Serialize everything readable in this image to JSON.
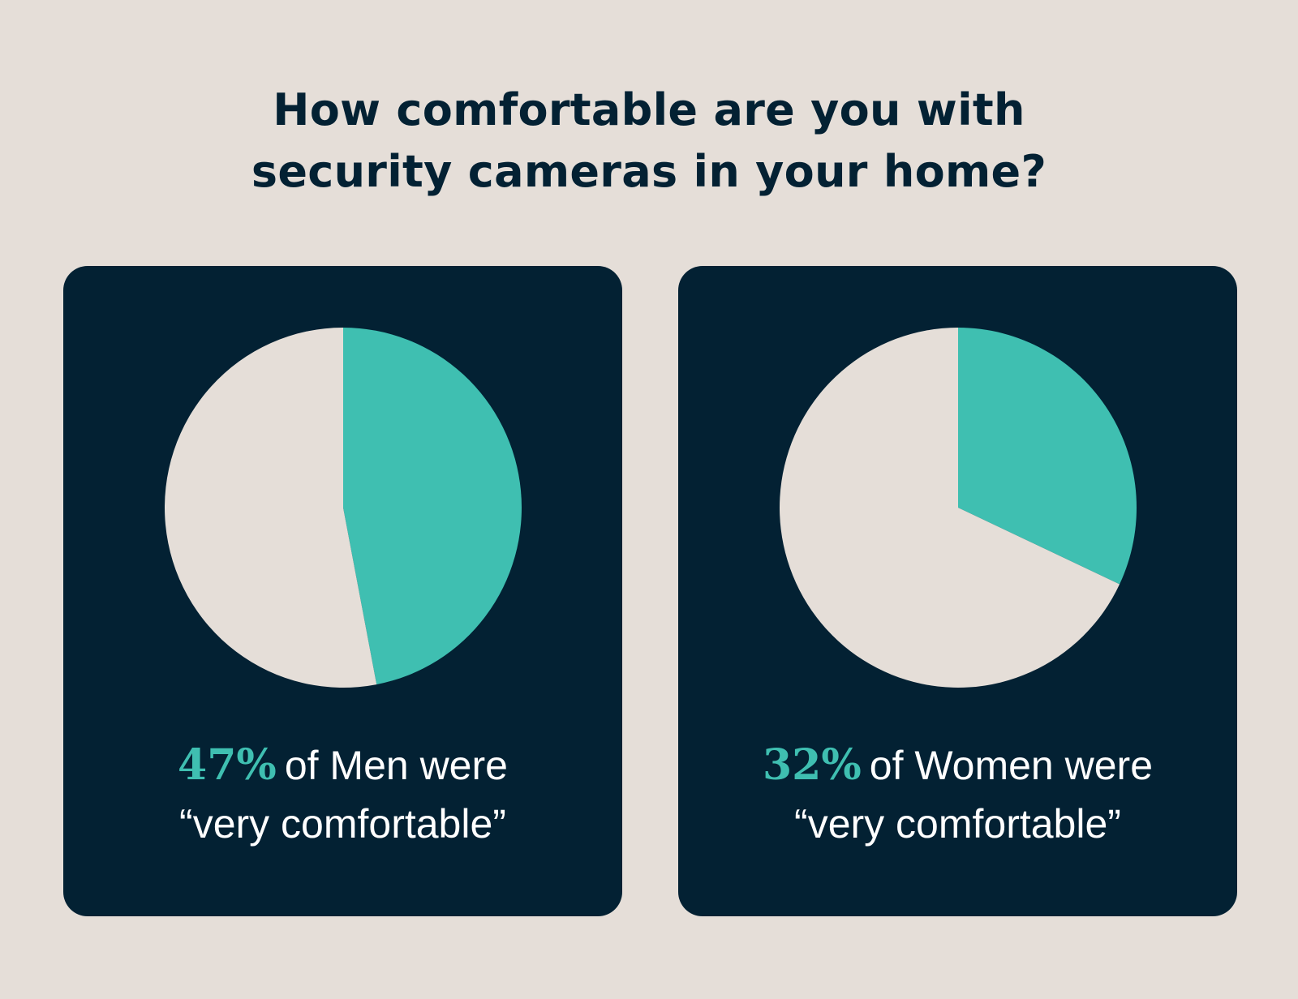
{
  "title_line1": "How comfortable are you with",
  "title_line2": "security cameras in your home?",
  "colors": {
    "background": "#e5ded8",
    "card": "#032133",
    "accent": "#3fbfb1",
    "remainder": "#e5ded8",
    "title": "#032133",
    "caption": "#ffffff"
  },
  "chart_data": [
    {
      "type": "pie",
      "slices": [
        {
          "label": "very comfortable",
          "value": 47
        },
        {
          "label": "other",
          "value": 53
        }
      ],
      "percent_label": "47%",
      "caption_rest": "of Men were",
      "caption_line2": "“very comfortable”"
    },
    {
      "type": "pie",
      "slices": [
        {
          "label": "very comfortable",
          "value": 32
        },
        {
          "label": "other",
          "value": 68
        }
      ],
      "percent_label": "32%",
      "caption_rest": "of Women were",
      "caption_line2": "“very comfortable”"
    }
  ]
}
